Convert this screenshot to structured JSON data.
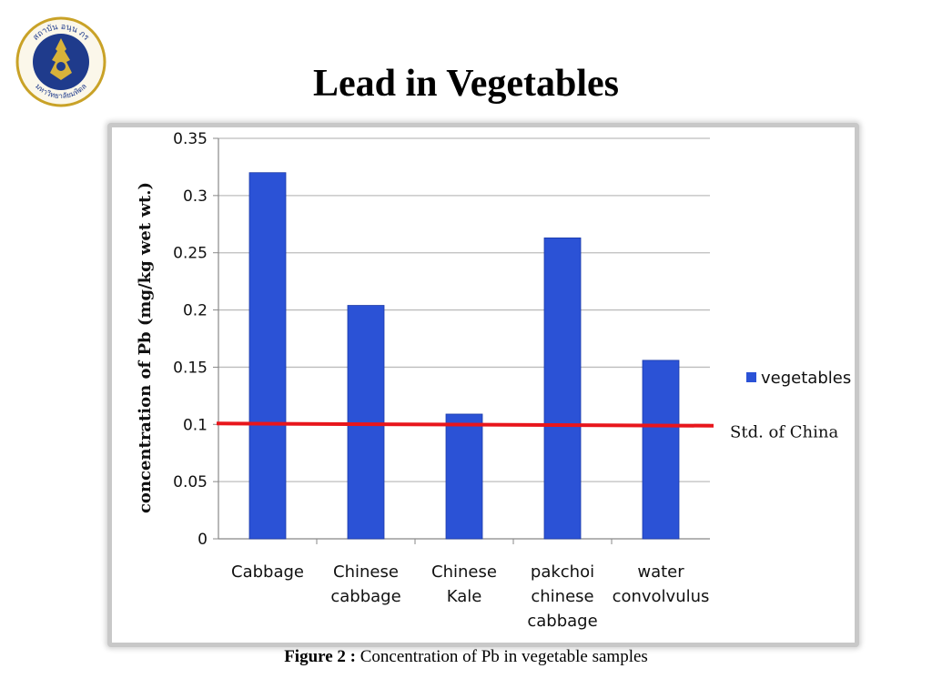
{
  "slide": {
    "title": "Lead in Vegetables",
    "caption_label": "Figure 2 :",
    "caption_text": " Concentration of Pb in vegetable samples",
    "logo_text_top": "สถาบัน อนฺน ภร",
    "logo_text_bottom": "มหาวิทยาลัยมหิดล"
  },
  "colors": {
    "bar": "#2b52d6",
    "bar_edge": "#1c3aa8",
    "reference_line": "#e8161c",
    "grid": "#bdbdbd",
    "logo_blue": "#1f3b8c",
    "logo_gold": "#c9a227"
  },
  "chart_data": {
    "type": "bar",
    "title": "",
    "xlabel": "",
    "ylabel": "concentration of Pb (mg/kg wet wt.)",
    "categories": [
      [
        "Cabbage"
      ],
      [
        "Chinese",
        "cabbage"
      ],
      [
        "Chinese",
        "Kale"
      ],
      [
        "pakchoi",
        "chinese",
        "cabbage"
      ],
      [
        "water",
        "convolvulus"
      ]
    ],
    "series": [
      {
        "name": "vegetables",
        "values": [
          0.32,
          0.204,
          0.109,
          0.263,
          0.156
        ]
      }
    ],
    "reference_line": {
      "label": "Std. of China",
      "value": 0.1
    },
    "ylim": [
      0,
      0.35
    ],
    "yticks": [
      "0",
      "0.05",
      "0.1",
      "0.15",
      "0.2",
      "0.25",
      "0.3",
      "0.35"
    ],
    "grid": true,
    "legend_position": "right"
  }
}
